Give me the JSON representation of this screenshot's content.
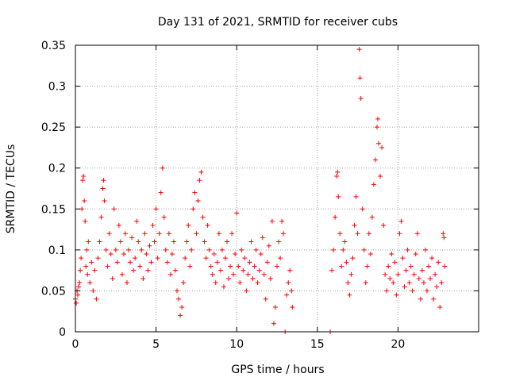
{
  "chart_data": {
    "type": "scatter",
    "title": "Day 131 of 2021, SRMTID for receiver cubs",
    "xlabel": "GPS time / hours",
    "ylabel": "SRMTID / TECUs",
    "xlim": [
      0,
      25
    ],
    "ylim": [
      0,
      0.35
    ],
    "xticks": [
      0,
      5,
      10,
      15,
      20
    ],
    "yticks": [
      0,
      0.05,
      0.1,
      0.15,
      0.2,
      0.25,
      0.3,
      0.35
    ],
    "grid": true,
    "legend": "none",
    "marker": "+",
    "colors": {
      "series": "#ff0000",
      "grid": "#a0a0a0",
      "axes": "#000000"
    },
    "series": [
      {
        "name": "SRMTID",
        "points": [
          [
            0.0,
            0.04
          ],
          [
            0.05,
            0.035
          ],
          [
            0.1,
            0.05
          ],
          [
            0.15,
            0.045
          ],
          [
            0.2,
            0.055
          ],
          [
            0.25,
            0.06
          ],
          [
            0.3,
            0.075
          ],
          [
            0.35,
            0.09
          ],
          [
            0.4,
            0.15
          ],
          [
            0.45,
            0.185
          ],
          [
            0.5,
            0.19
          ],
          [
            0.55,
            0.16
          ],
          [
            0.6,
            0.135
          ],
          [
            0.65,
            0.08
          ],
          [
            0.7,
            0.1
          ],
          [
            0.75,
            0.07
          ],
          [
            0.8,
            0.11
          ],
          [
            0.9,
            0.06
          ],
          [
            1.0,
            0.085
          ],
          [
            1.1,
            0.05
          ],
          [
            1.2,
            0.075
          ],
          [
            1.3,
            0.04
          ],
          [
            1.4,
            0.09
          ],
          [
            1.5,
            0.11
          ],
          [
            1.6,
            0.14
          ],
          [
            1.7,
            0.175
          ],
          [
            1.75,
            0.185
          ],
          [
            1.8,
            0.16
          ],
          [
            1.9,
            0.1
          ],
          [
            2.0,
            0.08
          ],
          [
            2.1,
            0.12
          ],
          [
            2.2,
            0.095
          ],
          [
            2.3,
            0.065
          ],
          [
            2.4,
            0.15
          ],
          [
            2.5,
            0.1
          ],
          [
            2.6,
            0.085
          ],
          [
            2.7,
            0.13
          ],
          [
            2.8,
            0.11
          ],
          [
            2.9,
            0.07
          ],
          [
            3.0,
            0.095
          ],
          [
            3.1,
            0.12
          ],
          [
            3.2,
            0.06
          ],
          [
            3.3,
            0.1
          ],
          [
            3.4,
            0.085
          ],
          [
            3.5,
            0.115
          ],
          [
            3.6,
            0.075
          ],
          [
            3.7,
            0.09
          ],
          [
            3.8,
            0.135
          ],
          [
            3.9,
            0.11
          ],
          [
            4.0,
            0.08
          ],
          [
            4.1,
            0.1
          ],
          [
            4.2,
            0.065
          ],
          [
            4.3,
            0.12
          ],
          [
            4.4,
            0.095
          ],
          [
            4.5,
            0.075
          ],
          [
            4.6,
            0.105
          ],
          [
            4.7,
            0.085
          ],
          [
            4.8,
            0.13
          ],
          [
            4.9,
            0.11
          ],
          [
            5.0,
            0.15
          ],
          [
            5.1,
            0.09
          ],
          [
            5.2,
            0.12
          ],
          [
            5.3,
            0.17
          ],
          [
            5.4,
            0.2
          ],
          [
            5.5,
            0.14
          ],
          [
            5.6,
            0.1
          ],
          [
            5.7,
            0.085
          ],
          [
            5.8,
            0.12
          ],
          [
            5.9,
            0.07
          ],
          [
            6.0,
            0.095
          ],
          [
            6.1,
            0.11
          ],
          [
            6.2,
            0.075
          ],
          [
            6.3,
            0.05
          ],
          [
            6.4,
            0.04
          ],
          [
            6.5,
            0.02
          ],
          [
            6.6,
            0.03
          ],
          [
            6.7,
            0.06
          ],
          [
            6.8,
            0.09
          ],
          [
            6.9,
            0.11
          ],
          [
            7.0,
            0.13
          ],
          [
            7.1,
            0.08
          ],
          [
            7.2,
            0.1
          ],
          [
            7.3,
            0.15
          ],
          [
            7.4,
            0.17
          ],
          [
            7.5,
            0.12
          ],
          [
            7.6,
            0.16
          ],
          [
            7.7,
            0.185
          ],
          [
            7.8,
            0.195
          ],
          [
            7.9,
            0.14
          ],
          [
            8.0,
            0.11
          ],
          [
            8.1,
            0.09
          ],
          [
            8.2,
            0.13
          ],
          [
            8.3,
            0.1
          ],
          [
            8.4,
            0.08
          ],
          [
            8.5,
            0.07
          ],
          [
            8.6,
            0.095
          ],
          [
            8.7,
            0.06
          ],
          [
            8.8,
            0.085
          ],
          [
            8.9,
            0.12
          ],
          [
            9.0,
            0.075
          ],
          [
            9.1,
            0.1
          ],
          [
            9.2,
            0.055
          ],
          [
            9.3,
            0.09
          ],
          [
            9.4,
            0.11
          ],
          [
            9.5,
            0.065
          ],
          [
            9.6,
            0.08
          ],
          [
            9.7,
            0.12
          ],
          [
            9.8,
            0.07
          ],
          [
            9.9,
            0.095
          ],
          [
            10.0,
            0.145
          ],
          [
            10.1,
            0.08
          ],
          [
            10.2,
            0.06
          ],
          [
            10.3,
            0.1
          ],
          [
            10.4,
            0.075
          ],
          [
            10.5,
            0.09
          ],
          [
            10.6,
            0.05
          ],
          [
            10.7,
            0.07
          ],
          [
            10.8,
            0.085
          ],
          [
            10.9,
            0.11
          ],
          [
            11.0,
            0.065
          ],
          [
            11.1,
            0.08
          ],
          [
            11.2,
            0.1
          ],
          [
            11.3,
            0.06
          ],
          [
            11.4,
            0.075
          ],
          [
            11.5,
            0.095
          ],
          [
            11.6,
            0.115
          ],
          [
            11.7,
            0.07
          ],
          [
            11.8,
            0.04
          ],
          [
            11.9,
            0.085
          ],
          [
            12.0,
            0.105
          ],
          [
            12.1,
            0.065
          ],
          [
            12.2,
            0.135
          ],
          [
            12.3,
            0.01
          ],
          [
            12.4,
            0.03
          ],
          [
            12.5,
            0.08
          ],
          [
            12.6,
            0.11
          ],
          [
            12.7,
            0.09
          ],
          [
            12.8,
            0.135
          ],
          [
            12.9,
            0.12
          ],
          [
            13.0,
            0.0
          ],
          [
            13.1,
            0.045
          ],
          [
            13.2,
            0.06
          ],
          [
            13.3,
            0.075
          ],
          [
            13.4,
            0.05
          ],
          [
            13.45,
            0.03
          ],
          [
            15.8,
            0.0
          ],
          [
            15.9,
            0.075
          ],
          [
            16.0,
            0.1
          ],
          [
            16.1,
            0.14
          ],
          [
            16.2,
            0.19
          ],
          [
            16.25,
            0.195
          ],
          [
            16.3,
            0.165
          ],
          [
            16.4,
            0.12
          ],
          [
            16.5,
            0.08
          ],
          [
            16.6,
            0.1
          ],
          [
            16.7,
            0.11
          ],
          [
            16.8,
            0.085
          ],
          [
            16.9,
            0.06
          ],
          [
            17.0,
            0.045
          ],
          [
            17.1,
            0.07
          ],
          [
            17.2,
            0.09
          ],
          [
            17.3,
            0.13
          ],
          [
            17.4,
            0.165
          ],
          [
            17.5,
            0.12
          ],
          [
            17.6,
            0.345
          ],
          [
            17.65,
            0.31
          ],
          [
            17.7,
            0.285
          ],
          [
            17.8,
            0.15
          ],
          [
            17.9,
            0.1
          ],
          [
            18.0,
            0.06
          ],
          [
            18.1,
            0.08
          ],
          [
            18.2,
            0.12
          ],
          [
            18.3,
            0.095
          ],
          [
            18.4,
            0.14
          ],
          [
            18.5,
            0.18
          ],
          [
            18.6,
            0.21
          ],
          [
            18.7,
            0.25
          ],
          [
            18.75,
            0.26
          ],
          [
            18.8,
            0.23
          ],
          [
            18.9,
            0.19
          ],
          [
            19.0,
            0.225
          ],
          [
            19.1,
            0.13
          ],
          [
            19.2,
            0.07
          ],
          [
            19.3,
            0.05
          ],
          [
            19.4,
            0.08
          ],
          [
            19.5,
            0.065
          ],
          [
            19.6,
            0.095
          ],
          [
            19.7,
            0.06
          ],
          [
            19.8,
            0.085
          ],
          [
            19.9,
            0.045
          ],
          [
            20.0,
            0.07
          ],
          [
            20.1,
            0.12
          ],
          [
            20.2,
            0.135
          ],
          [
            20.3,
            0.09
          ],
          [
            20.4,
            0.055
          ],
          [
            20.5,
            0.075
          ],
          [
            20.6,
            0.1
          ],
          [
            20.7,
            0.06
          ],
          [
            20.8,
            0.08
          ],
          [
            20.9,
            0.05
          ],
          [
            21.0,
            0.07
          ],
          [
            21.1,
            0.095
          ],
          [
            21.2,
            0.12
          ],
          [
            21.3,
            0.065
          ],
          [
            21.4,
            0.04
          ],
          [
            21.5,
            0.075
          ],
          [
            21.6,
            0.06
          ],
          [
            21.7,
            0.1
          ],
          [
            21.8,
            0.05
          ],
          [
            21.9,
            0.08
          ],
          [
            22.0,
            0.065
          ],
          [
            22.1,
            0.09
          ],
          [
            22.2,
            0.04
          ],
          [
            22.3,
            0.07
          ],
          [
            22.4,
            0.055
          ],
          [
            22.5,
            0.085
          ],
          [
            22.6,
            0.03
          ],
          [
            22.7,
            0.06
          ],
          [
            22.8,
            0.12
          ],
          [
            22.85,
            0.115
          ],
          [
            22.9,
            0.08
          ]
        ]
      }
    ]
  }
}
